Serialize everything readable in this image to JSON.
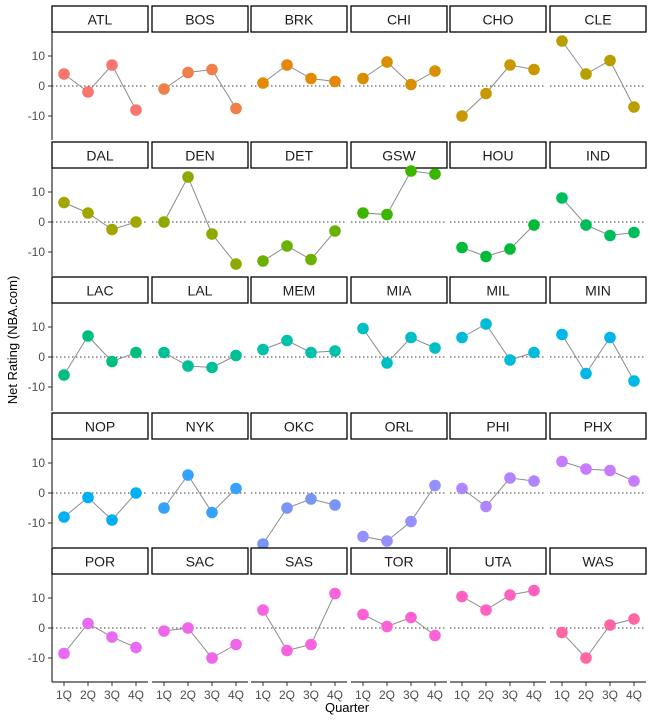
{
  "chart_data": {
    "type": "line",
    "facet": "team",
    "xlabel": "Quarter",
    "ylabel": "Net Rating (NBA.com)",
    "x_ticks": [
      "1Q",
      "2Q",
      "3Q",
      "4Q"
    ],
    "y_ticks": [
      -10,
      0,
      10
    ],
    "ylim": [
      -18,
      18
    ],
    "reference_line": 0,
    "panels": [
      {
        "team": "ATL",
        "color": "#f8766d",
        "values": [
          4,
          -2,
          7,
          -8
        ]
      },
      {
        "team": "BOS",
        "color": "#f07f4a",
        "values": [
          -1,
          4.5,
          5.5,
          -7.5
        ]
      },
      {
        "team": "BRK",
        "color": "#e58700",
        "values": [
          1,
          7,
          2.5,
          1.5
        ]
      },
      {
        "team": "CHI",
        "color": "#d89000",
        "values": [
          2.5,
          8,
          0.5,
          5
        ]
      },
      {
        "team": "CHO",
        "color": "#c99800",
        "values": [
          -10,
          -2.5,
          7,
          5.5
        ]
      },
      {
        "team": "CLE",
        "color": "#b79f00",
        "values": [
          15,
          4,
          8.5,
          -7
        ]
      },
      {
        "team": "DAL",
        "color": "#a3a500",
        "values": [
          6.5,
          3,
          -2.5,
          0
        ]
      },
      {
        "team": "DEN",
        "color": "#8caa00",
        "values": [
          0,
          15,
          -4,
          -14
        ]
      },
      {
        "team": "DET",
        "color": "#6bb100",
        "values": [
          -13,
          -8,
          -12.5,
          -3
        ]
      },
      {
        "team": "GSW",
        "color": "#39b600",
        "values": [
          3,
          2.5,
          17,
          16
        ]
      },
      {
        "team": "HOU",
        "color": "#00ba38",
        "values": [
          -8.5,
          -11.5,
          -9,
          -1
        ]
      },
      {
        "team": "IND",
        "color": "#00bd5c",
        "values": [
          8,
          -1,
          -4.5,
          -3.5
        ]
      },
      {
        "team": "LAC",
        "color": "#00bf7d",
        "values": [
          -6,
          7,
          -1.5,
          1.5
        ]
      },
      {
        "team": "LAL",
        "color": "#00c097",
        "values": [
          1.5,
          -3,
          -3.5,
          0.5
        ]
      },
      {
        "team": "MEM",
        "color": "#00c1aa",
        "values": [
          2.5,
          5.5,
          1.5,
          2
        ]
      },
      {
        "team": "MIA",
        "color": "#00bfc4",
        "values": [
          9.5,
          -2,
          6.5,
          3
        ]
      },
      {
        "team": "MIL",
        "color": "#00bcd8",
        "values": [
          6.5,
          11,
          -1,
          1.5
        ]
      },
      {
        "team": "MIN",
        "color": "#00b8e7",
        "values": [
          7.5,
          -5.5,
          6.5,
          -8
        ]
      },
      {
        "team": "NOP",
        "color": "#00b0f6",
        "values": [
          -8,
          -1.5,
          -9,
          0
        ]
      },
      {
        "team": "NYK",
        "color": "#35a2ff",
        "values": [
          -5,
          6,
          -6.5,
          1.5
        ]
      },
      {
        "team": "OKC",
        "color": "#7a95f8",
        "values": [
          -17,
          -5,
          -2,
          -4
        ]
      },
      {
        "team": "ORL",
        "color": "#9590ff",
        "values": [
          -14.5,
          -16,
          -9.5,
          2.5
        ]
      },
      {
        "team": "PHI",
        "color": "#ae87ff",
        "values": [
          1.5,
          -4.5,
          5,
          4
        ]
      },
      {
        "team": "PHX",
        "color": "#c77cff",
        "values": [
          10.5,
          8,
          7.5,
          4
        ]
      },
      {
        "team": "POR",
        "color": "#e76bf3",
        "values": [
          -8.5,
          1.5,
          -3,
          -6.5
        ]
      },
      {
        "team": "SAC",
        "color": "#f066ea",
        "values": [
          -1,
          0,
          -10,
          -5.5
        ]
      },
      {
        "team": "SAS",
        "color": "#f863df",
        "values": [
          6,
          -7.5,
          -5.5,
          11.5
        ]
      },
      {
        "team": "TOR",
        "color": "#fa62d5",
        "values": [
          4.5,
          0.5,
          3.5,
          -2.5
        ]
      },
      {
        "team": "UTA",
        "color": "#ff61c3",
        "values": [
          10.5,
          6,
          11,
          12.5
        ]
      },
      {
        "team": "WAS",
        "color": "#ff67a4",
        "values": [
          -1.5,
          -10,
          1,
          3
        ]
      }
    ]
  }
}
